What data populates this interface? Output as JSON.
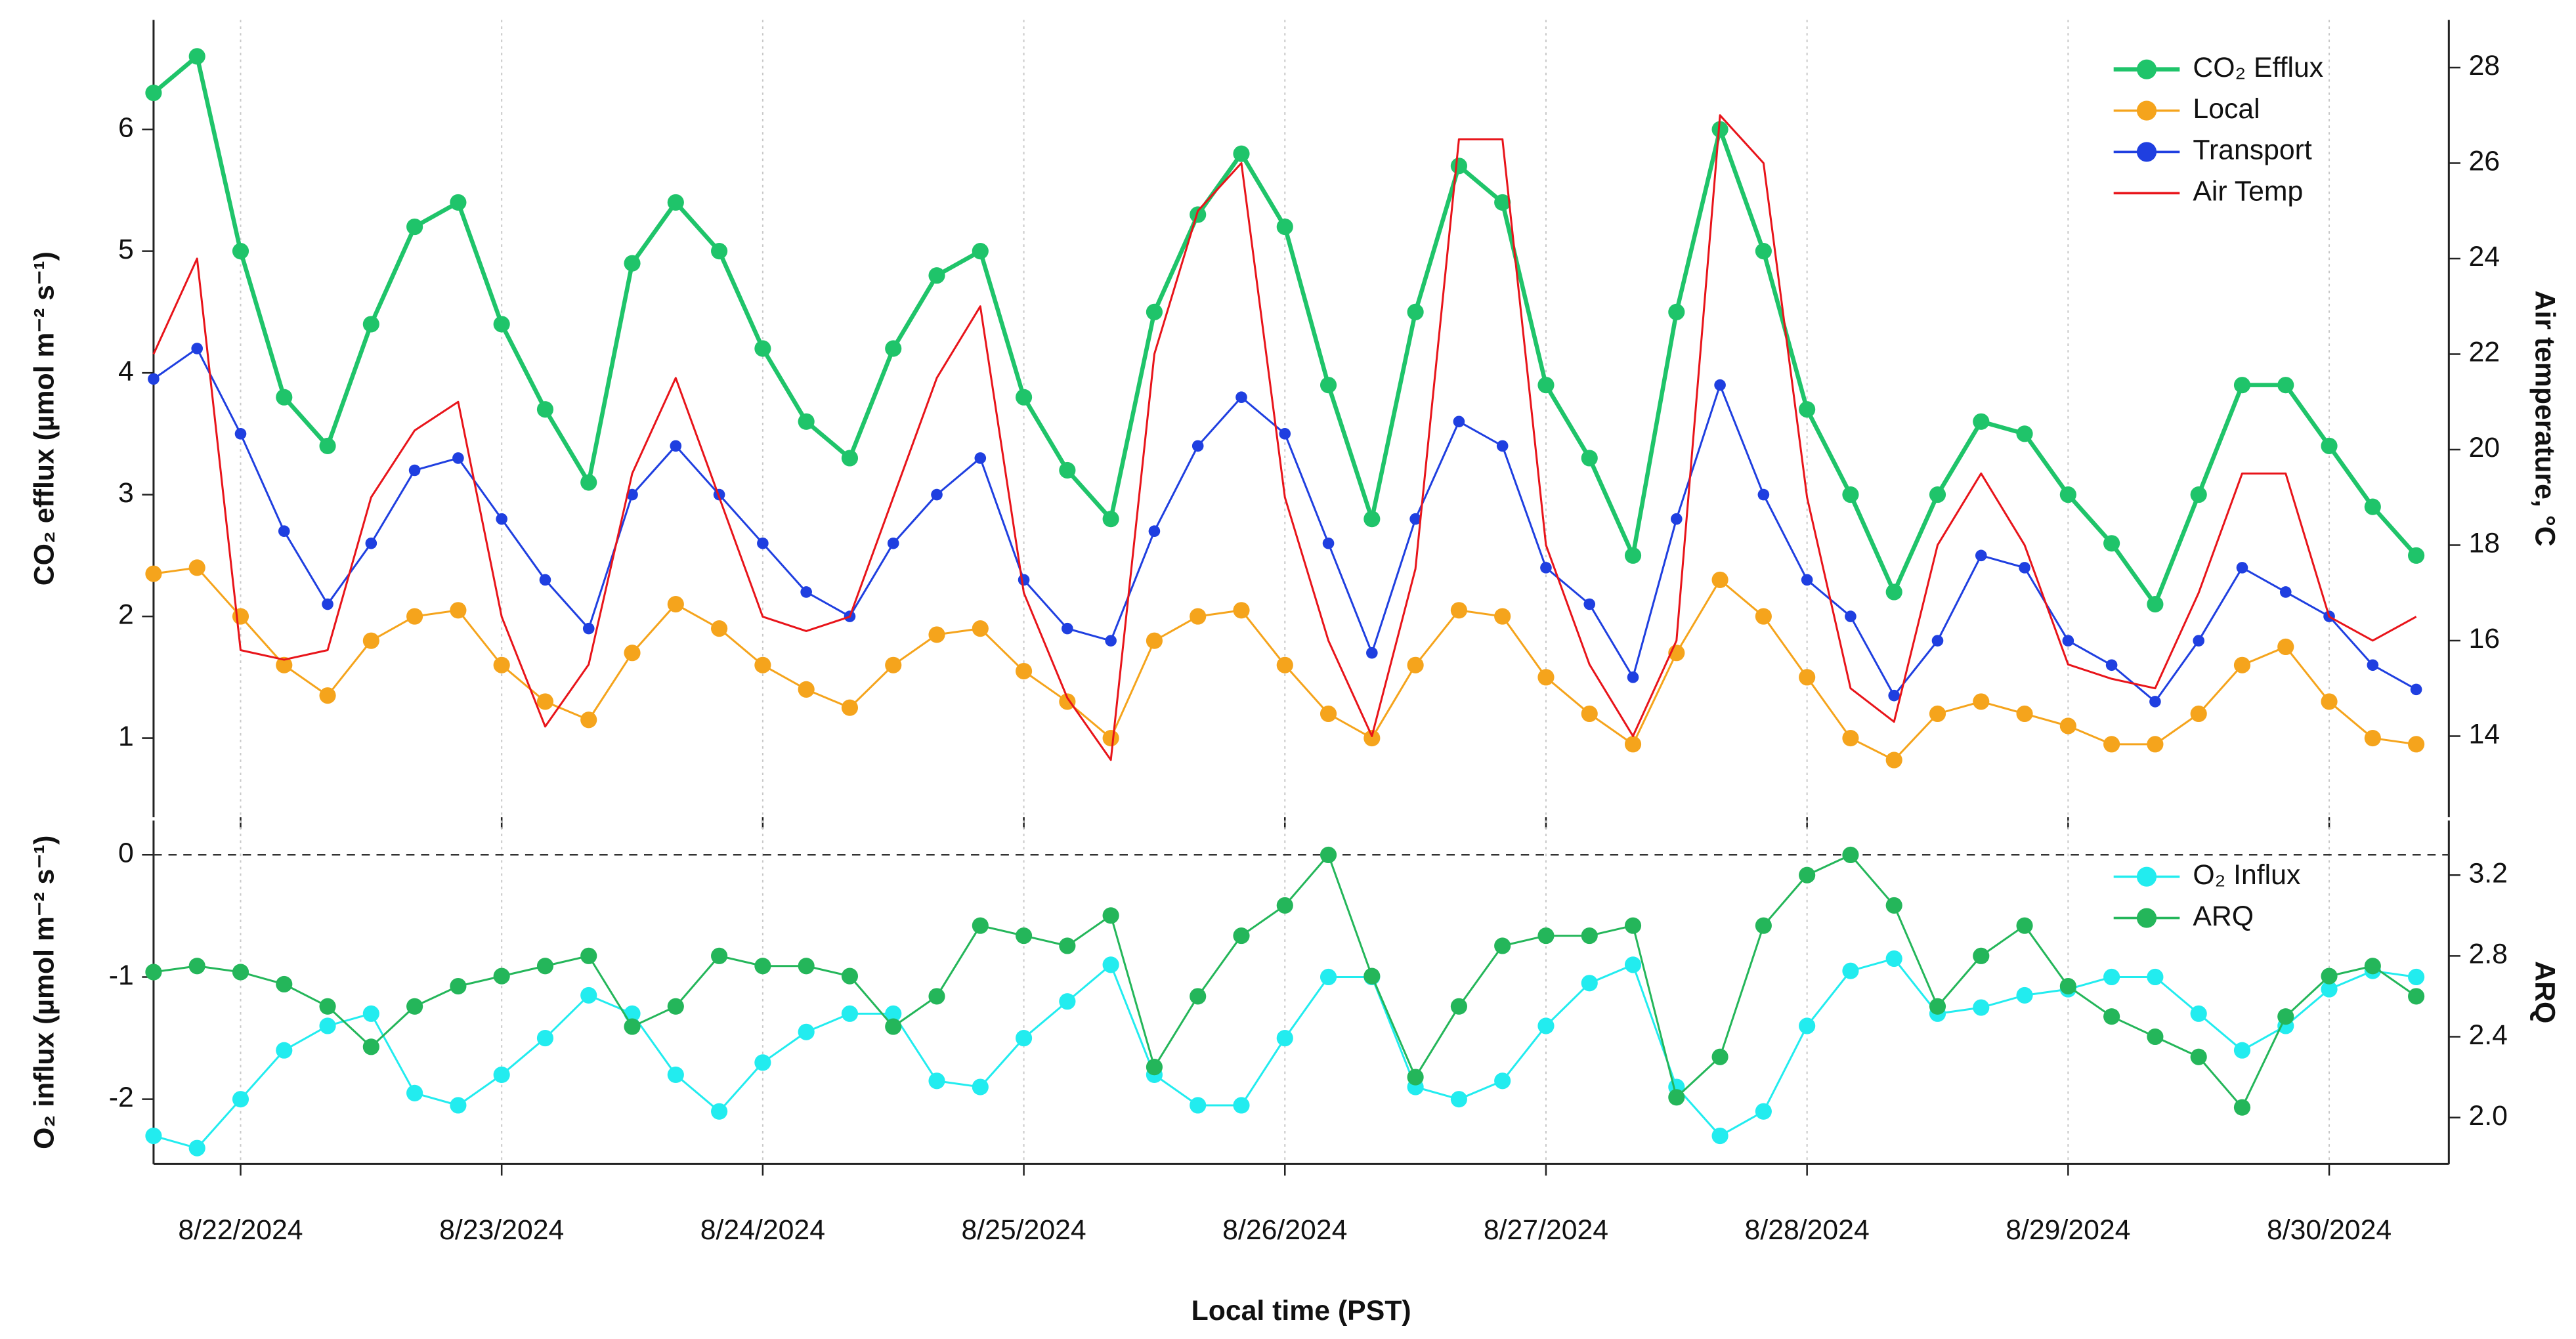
{
  "chart_data": [
    {
      "type": "line",
      "ylabel": "CO₂ efflux (µmol m⁻² s⁻¹)",
      "y2label": "Air temperature, °C",
      "xlim": [
        "2024-08-21T16:00",
        "2024-08-30T11:00"
      ],
      "ylim": [
        0.35,
        6.9
      ],
      "yticks": [
        1,
        2,
        3,
        4,
        5,
        6
      ],
      "y2lim": [
        12.3,
        29.0
      ],
      "y2ticks": [
        14,
        16,
        18,
        20,
        22,
        24,
        26,
        28
      ],
      "legend": "upper right",
      "x": [
        "2024-08-21T16:00",
        "2024-08-21T20:00",
        "2024-08-22T00:00",
        "2024-08-22T04:00",
        "2024-08-22T08:00",
        "2024-08-22T12:00",
        "2024-08-22T16:00",
        "2024-08-22T20:00",
        "2024-08-23T00:00",
        "2024-08-23T04:00",
        "2024-08-23T08:00",
        "2024-08-23T12:00",
        "2024-08-23T16:00",
        "2024-08-23T20:00",
        "2024-08-24T00:00",
        "2024-08-24T04:00",
        "2024-08-24T08:00",
        "2024-08-24T12:00",
        "2024-08-24T16:00",
        "2024-08-24T20:00",
        "2024-08-25T00:00",
        "2024-08-25T04:00",
        "2024-08-25T08:00",
        "2024-08-25T12:00",
        "2024-08-25T16:00",
        "2024-08-25T20:00",
        "2024-08-26T00:00",
        "2024-08-26T04:00",
        "2024-08-26T08:00",
        "2024-08-26T12:00",
        "2024-08-26T16:00",
        "2024-08-26T20:00",
        "2024-08-27T00:00",
        "2024-08-27T04:00",
        "2024-08-27T08:00",
        "2024-08-27T12:00",
        "2024-08-27T16:00",
        "2024-08-27T20:00",
        "2024-08-28T00:00",
        "2024-08-28T04:00",
        "2024-08-28T08:00",
        "2024-08-28T12:00",
        "2024-08-28T16:00",
        "2024-08-28T20:00",
        "2024-08-29T00:00",
        "2024-08-29T04:00",
        "2024-08-29T08:00",
        "2024-08-29T12:00",
        "2024-08-29T16:00",
        "2024-08-29T20:00",
        "2024-08-30T00:00",
        "2024-08-30T04:00",
        "2024-08-30T08:00"
      ],
      "series": [
        {
          "name": "CO₂ Efflux",
          "color": "#1fc46a",
          "markers": true,
          "values": [
            6.3,
            6.6,
            5.0,
            3.8,
            3.4,
            4.4,
            5.2,
            5.4,
            4.4,
            3.7,
            3.1,
            4.9,
            5.4,
            5.0,
            4.2,
            3.6,
            3.3,
            4.2,
            4.8,
            5.0,
            3.8,
            3.2,
            2.8,
            4.5,
            5.3,
            5.8,
            5.2,
            3.9,
            2.8,
            4.5,
            5.7,
            5.4,
            3.9,
            3.3,
            2.5,
            4.5,
            6.0,
            5.0,
            3.7,
            3.0,
            2.2,
            3.0,
            3.6,
            3.5,
            3.0,
            2.6,
            2.1,
            3.0,
            3.9,
            3.9,
            3.4,
            2.9,
            2.5
          ]
        },
        {
          "name": "Local",
          "color": "#f5a41c",
          "markers": true,
          "values": [
            2.35,
            2.4,
            2.0,
            1.6,
            1.35,
            1.8,
            2.0,
            2.05,
            1.6,
            1.3,
            1.15,
            1.7,
            2.1,
            1.9,
            1.6,
            1.4,
            1.25,
            1.6,
            1.85,
            1.9,
            1.55,
            1.3,
            1.0,
            1.8,
            2.0,
            2.05,
            1.6,
            1.2,
            1.0,
            1.6,
            2.05,
            2.0,
            1.5,
            1.2,
            0.95,
            1.7,
            2.3,
            2.0,
            1.5,
            1.0,
            0.82,
            1.2,
            1.3,
            1.2,
            1.1,
            0.95,
            0.95,
            1.2,
            1.6,
            1.75,
            1.3,
            1.0,
            0.95
          ]
        },
        {
          "name": "Transport",
          "color": "#1f3fe0",
          "markers": true,
          "values": [
            3.95,
            4.2,
            3.5,
            2.7,
            2.1,
            2.6,
            3.2,
            3.3,
            2.8,
            2.3,
            1.9,
            3.0,
            3.4,
            3.0,
            2.6,
            2.2,
            2.0,
            2.6,
            3.0,
            3.3,
            2.3,
            1.9,
            1.8,
            2.7,
            3.4,
            3.8,
            3.5,
            2.6,
            1.7,
            2.8,
            3.6,
            3.4,
            2.4,
            2.1,
            1.5,
            2.8,
            3.9,
            3.0,
            2.3,
            2.0,
            1.35,
            1.8,
            2.5,
            2.4,
            1.8,
            1.6,
            1.3,
            1.8,
            2.4,
            2.2,
            2.0,
            1.6,
            1.4
          ]
        },
        {
          "name": "Air Temp",
          "color": "#e8141a",
          "markers": false,
          "axis": "y2",
          "values": [
            22.0,
            24.0,
            15.8,
            15.6,
            15.8,
            19.0,
            20.4,
            21.0,
            16.5,
            14.2,
            15.5,
            19.5,
            21.5,
            19.0,
            16.5,
            16.2,
            16.5,
            19.0,
            21.5,
            23.0,
            17.0,
            14.8,
            13.5,
            22.0,
            25.0,
            26.0,
            19.0,
            16.0,
            14.0,
            17.5,
            26.5,
            26.5,
            18.0,
            15.5,
            14.0,
            16.0,
            27.0,
            26.0,
            19.0,
            15.0,
            14.3,
            18.0,
            19.5,
            18.0,
            15.5,
            15.2,
            15.0,
            17.0,
            19.5,
            19.5,
            16.5,
            16.0,
            16.5
          ]
        }
      ]
    },
    {
      "type": "line",
      "ylabel": "O₂ influx (µmol m⁻² s⁻¹)",
      "y2label": "ARQ",
      "xlabel": "Local time (PST)",
      "xlim": [
        "2024-08-21T16:00",
        "2024-08-30T11:00"
      ],
      "xticks": [
        {
          "value": "2024-08-22T00:00",
          "label": "8/22/2024"
        },
        {
          "value": "2024-08-23T00:00",
          "label": "8/23/2024"
        },
        {
          "value": "2024-08-24T00:00",
          "label": "8/24/2024"
        },
        {
          "value": "2024-08-25T00:00",
          "label": "8/25/2024"
        },
        {
          "value": "2024-08-26T00:00",
          "label": "8/26/2024"
        },
        {
          "value": "2024-08-27T00:00",
          "label": "8/27/2024"
        },
        {
          "value": "2024-08-28T00:00",
          "label": "8/28/2024"
        },
        {
          "value": "2024-08-29T00:00",
          "label": "8/29/2024"
        },
        {
          "value": "2024-08-30T00:00",
          "label": "8/30/2024"
        }
      ],
      "ylim": [
        -2.53,
        0.28
      ],
      "yticks": [
        -2,
        -1,
        0
      ],
      "y2lim": [
        1.77,
        3.47
      ],
      "y2ticks": [
        {
          "value": 2,
          "label": "2.0"
        },
        2.4,
        2.8,
        3.2
      ],
      "hline": 0,
      "legend": "right",
      "x": [
        "2024-08-21T16:00",
        "2024-08-21T20:00",
        "2024-08-22T00:00",
        "2024-08-22T04:00",
        "2024-08-22T08:00",
        "2024-08-22T12:00",
        "2024-08-22T16:00",
        "2024-08-22T20:00",
        "2024-08-23T00:00",
        "2024-08-23T04:00",
        "2024-08-23T08:00",
        "2024-08-23T12:00",
        "2024-08-23T16:00",
        "2024-08-23T20:00",
        "2024-08-24T00:00",
        "2024-08-24T04:00",
        "2024-08-24T08:00",
        "2024-08-24T12:00",
        "2024-08-24T16:00",
        "2024-08-24T20:00",
        "2024-08-25T00:00",
        "2024-08-25T04:00",
        "2024-08-25T08:00",
        "2024-08-25T12:00",
        "2024-08-25T16:00",
        "2024-08-25T20:00",
        "2024-08-26T00:00",
        "2024-08-26T04:00",
        "2024-08-26T08:00",
        "2024-08-26T12:00",
        "2024-08-26T16:00",
        "2024-08-26T20:00",
        "2024-08-27T00:00",
        "2024-08-27T04:00",
        "2024-08-27T08:00",
        "2024-08-27T12:00",
        "2024-08-27T16:00",
        "2024-08-27T20:00",
        "2024-08-28T00:00",
        "2024-08-28T04:00",
        "2024-08-28T08:00",
        "2024-08-28T12:00",
        "2024-08-28T16:00",
        "2024-08-28T20:00",
        "2024-08-29T00:00",
        "2024-08-29T04:00",
        "2024-08-29T08:00",
        "2024-08-29T12:00",
        "2024-08-29T16:00",
        "2024-08-29T20:00",
        "2024-08-30T00:00",
        "2024-08-30T04:00",
        "2024-08-30T08:00"
      ],
      "series": [
        {
          "name": "O₂ Influx",
          "color": "#22ecef",
          "markers": true,
          "values": [
            -2.3,
            -2.4,
            -2.0,
            -1.6,
            -1.4,
            -1.3,
            -1.95,
            -2.05,
            -1.8,
            -1.5,
            -1.15,
            -1.3,
            -1.8,
            -2.1,
            -1.7,
            -1.45,
            -1.3,
            -1.3,
            -1.85,
            -1.9,
            -1.5,
            -1.2,
            -0.9,
            -1.8,
            -2.05,
            -2.05,
            -1.5,
            -1.0,
            -1.0,
            -1.9,
            -2.0,
            -1.85,
            -1.4,
            -1.05,
            -0.9,
            -1.9,
            -2.3,
            -2.1,
            -1.4,
            -0.95,
            -0.85,
            -1.3,
            -1.25,
            -1.15,
            -1.1,
            -1.0,
            -1.0,
            -1.3,
            -1.6,
            -1.4,
            -1.1,
            -0.95,
            -1.0
          ]
        },
        {
          "name": "ARQ",
          "color": "#24b65a",
          "markers": true,
          "axis": "y2",
          "values": [
            2.72,
            2.75,
            2.72,
            2.66,
            2.55,
            2.35,
            2.55,
            2.65,
            2.7,
            2.75,
            2.8,
            2.45,
            2.55,
            2.8,
            2.75,
            2.75,
            2.7,
            2.45,
            2.6,
            2.95,
            2.9,
            2.85,
            3.0,
            2.25,
            2.6,
            2.9,
            3.05,
            3.3,
            2.7,
            2.2,
            2.55,
            2.85,
            2.9,
            2.9,
            2.95,
            2.1,
            2.3,
            2.95,
            3.2,
            3.3,
            3.05,
            2.55,
            2.8,
            2.95,
            2.65,
            2.5,
            2.4,
            2.3,
            2.05,
            2.5,
            2.7,
            2.75,
            2.6
          ]
        }
      ]
    }
  ]
}
